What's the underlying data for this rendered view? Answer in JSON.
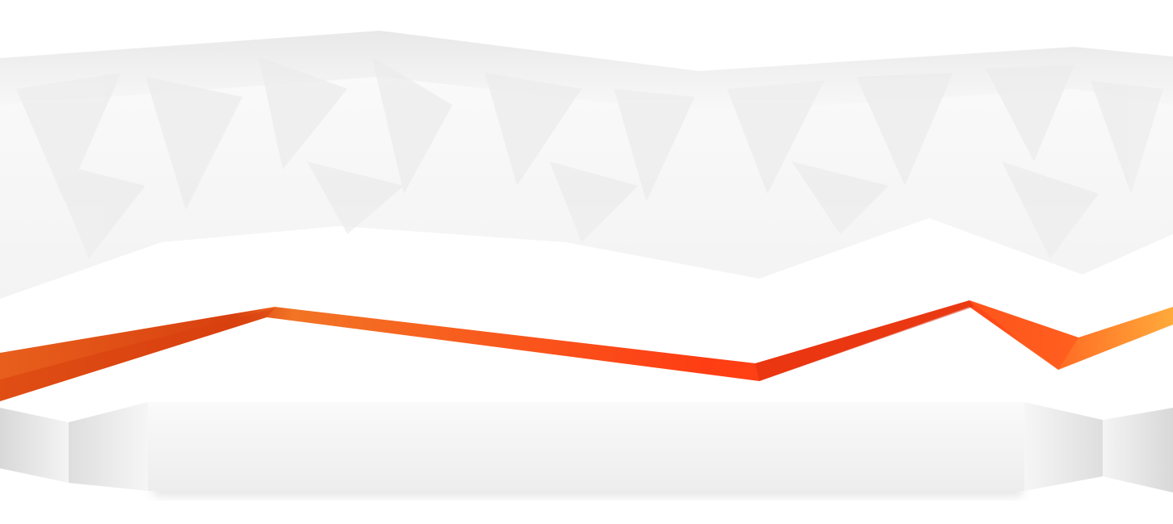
{
  "scene": {
    "background_color": "#ffffff",
    "banner_colors": {
      "face_light": "#fbfbfb",
      "face_mid": "#f3f3f3",
      "facet_shade": "#ececec",
      "edge_shadow": "#d9d9d9"
    },
    "ribbon_colors": {
      "orange_dark": "#e85f1c",
      "orange": "#f27425",
      "red_orange": "#ff3d14",
      "red_deep": "#d82e0e",
      "amber": "#ffaa3a"
    },
    "pedestal_colors": {
      "top": "#fafafa",
      "bottom": "#ededed",
      "side_light": "#f4f4f4",
      "side_dark": "#d8d8d8"
    }
  }
}
